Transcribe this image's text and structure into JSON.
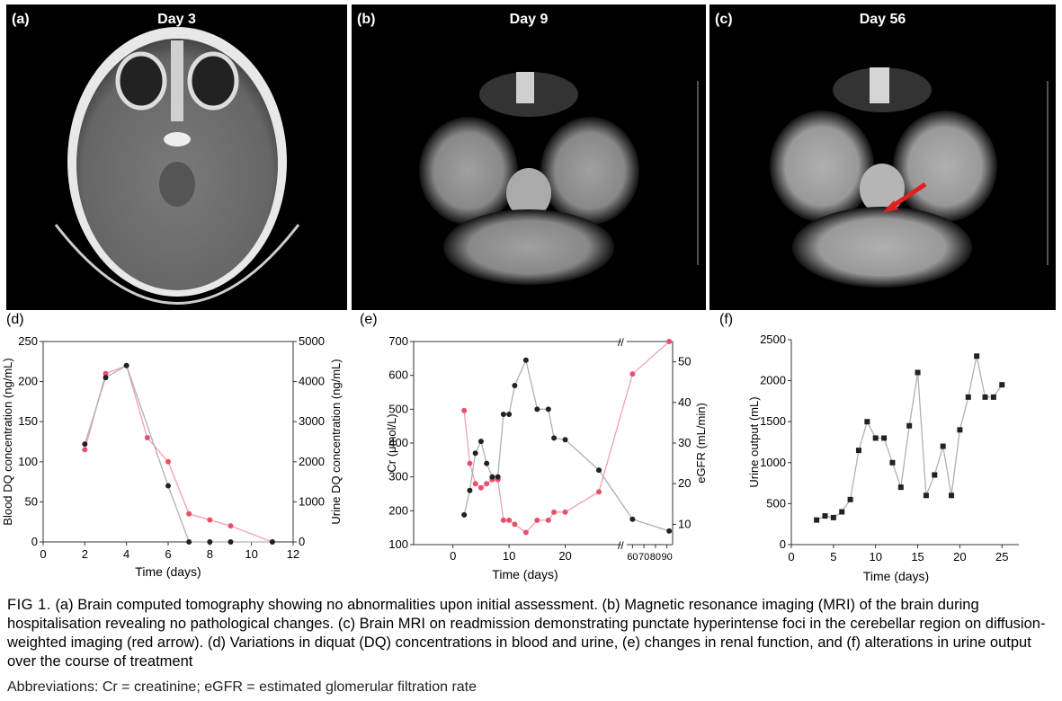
{
  "images": [
    {
      "label": "(a)",
      "title": "Day 3"
    },
    {
      "label": "(b)",
      "title": "Day 9"
    },
    {
      "label": "(c)",
      "title": "Day 56"
    }
  ],
  "colors": {
    "black_series": "#222222",
    "red_series": "#e8506e",
    "line_gray": "#b0b0b0",
    "line_red": "#f2a0b0",
    "arrow": "#e02020"
  },
  "chart_data": [
    {
      "panel": "(d)",
      "type": "line",
      "xlabel": "Time (days)",
      "ylabel_left": "Blood DQ concentration (ng/mL)",
      "ylabel_right": "Urine DQ concentration (ng/mL)",
      "xlim": [
        0,
        12
      ],
      "ylim_left": [
        0,
        250
      ],
      "ylim_right": [
        0,
        5000
      ],
      "x_ticks": [
        0,
        2,
        4,
        6,
        8,
        10,
        12
      ],
      "y_ticks_left": [
        0,
        50,
        100,
        150,
        200,
        250
      ],
      "y_ticks_right": [
        0,
        1000,
        2000,
        3000,
        4000,
        5000
      ],
      "series": [
        {
          "axis": "left",
          "x": [
            2,
            3,
            4,
            6,
            7,
            8,
            9,
            11
          ],
          "y": [
            122,
            205,
            220,
            70,
            0,
            0,
            0,
            0
          ]
        },
        {
          "axis": "right",
          "x": [
            2,
            3,
            4,
            5,
            6,
            7,
            8,
            9,
            11
          ],
          "y": [
            2300,
            4200,
            4400,
            2600,
            2000,
            700,
            550,
            400,
            0
          ]
        }
      ]
    },
    {
      "panel": "(e)",
      "type": "line",
      "xlabel": "Time (days)",
      "ylabel_left": "Cr (μmol/L)",
      "ylabel_right": "eGFR (mL/min)",
      "ylim_left": [
        100,
        700
      ],
      "ylim_right": [
        5,
        55
      ],
      "x_ticks": [
        "0",
        "10",
        "20",
        "60",
        "70",
        "80",
        "90"
      ],
      "y_ticks_left": [
        100,
        200,
        300,
        400,
        500,
        600,
        700
      ],
      "y_ticks_right": [
        10,
        20,
        30,
        40,
        50
      ],
      "axis_break": "//",
      "series": [
        {
          "axis": "left",
          "x": [
            2,
            3,
            4,
            5,
            6,
            7,
            8,
            9,
            10,
            11,
            13,
            15,
            17,
            18,
            20,
            26,
            60,
            92
          ],
          "y": [
            188,
            260,
            370,
            405,
            340,
            300,
            300,
            485,
            485,
            570,
            645,
            500,
            500,
            415,
            410,
            320,
            175,
            140
          ]
        },
        {
          "axis": "right",
          "x": [
            2,
            3,
            4,
            5,
            6,
            7,
            8,
            9,
            10,
            11,
            13,
            15,
            17,
            18,
            20,
            26,
            60,
            92
          ],
          "y": [
            38,
            25,
            20,
            19,
            20,
            21,
            21,
            11,
            11,
            10,
            8,
            11,
            11,
            13,
            13,
            18,
            47,
            55
          ]
        }
      ]
    },
    {
      "panel": "(f)",
      "type": "line",
      "xlabel": "Time (days)",
      "ylabel": "Urine output (mL)",
      "xlim": [
        0,
        27
      ],
      "ylim": [
        0,
        2500
      ],
      "x_ticks": [
        0,
        5,
        10,
        15,
        20,
        25
      ],
      "y_ticks": [
        0,
        500,
        1000,
        1500,
        2000,
        2500
      ],
      "series": [
        {
          "x": [
            3,
            4,
            5,
            6,
            7,
            8,
            9,
            10,
            11,
            12,
            13,
            14,
            15,
            16,
            17,
            18,
            19,
            20,
            21,
            22,
            23,
            24,
            25
          ],
          "y": [
            300,
            350,
            330,
            400,
            550,
            1150,
            1500,
            1300,
            1300,
            1000,
            700,
            1450,
            2100,
            600,
            850,
            1200,
            600,
            1400,
            1800,
            2300,
            1800,
            1800,
            1950
          ]
        }
      ]
    }
  ],
  "caption": {
    "fig": "FIG 1.",
    "text": "(a) Brain computed tomography showing no abnormalities upon initial assessment. (b) Magnetic resonance imaging (MRI) of the brain during hospitalisation revealing no pathological changes. (c) Brain MRI on readmission demonstrating punctate hyperintense foci in the cerebellar region on diffusion-weighted imaging (red arrow). (d) Variations in diquat (DQ) concentrations in blood and urine, (e) changes in renal function, and (f) alterations in urine output over the course of treatment",
    "abbreviations": "Abbreviations: Cr = creatinine; eGFR = estimated glomerular filtration rate"
  }
}
